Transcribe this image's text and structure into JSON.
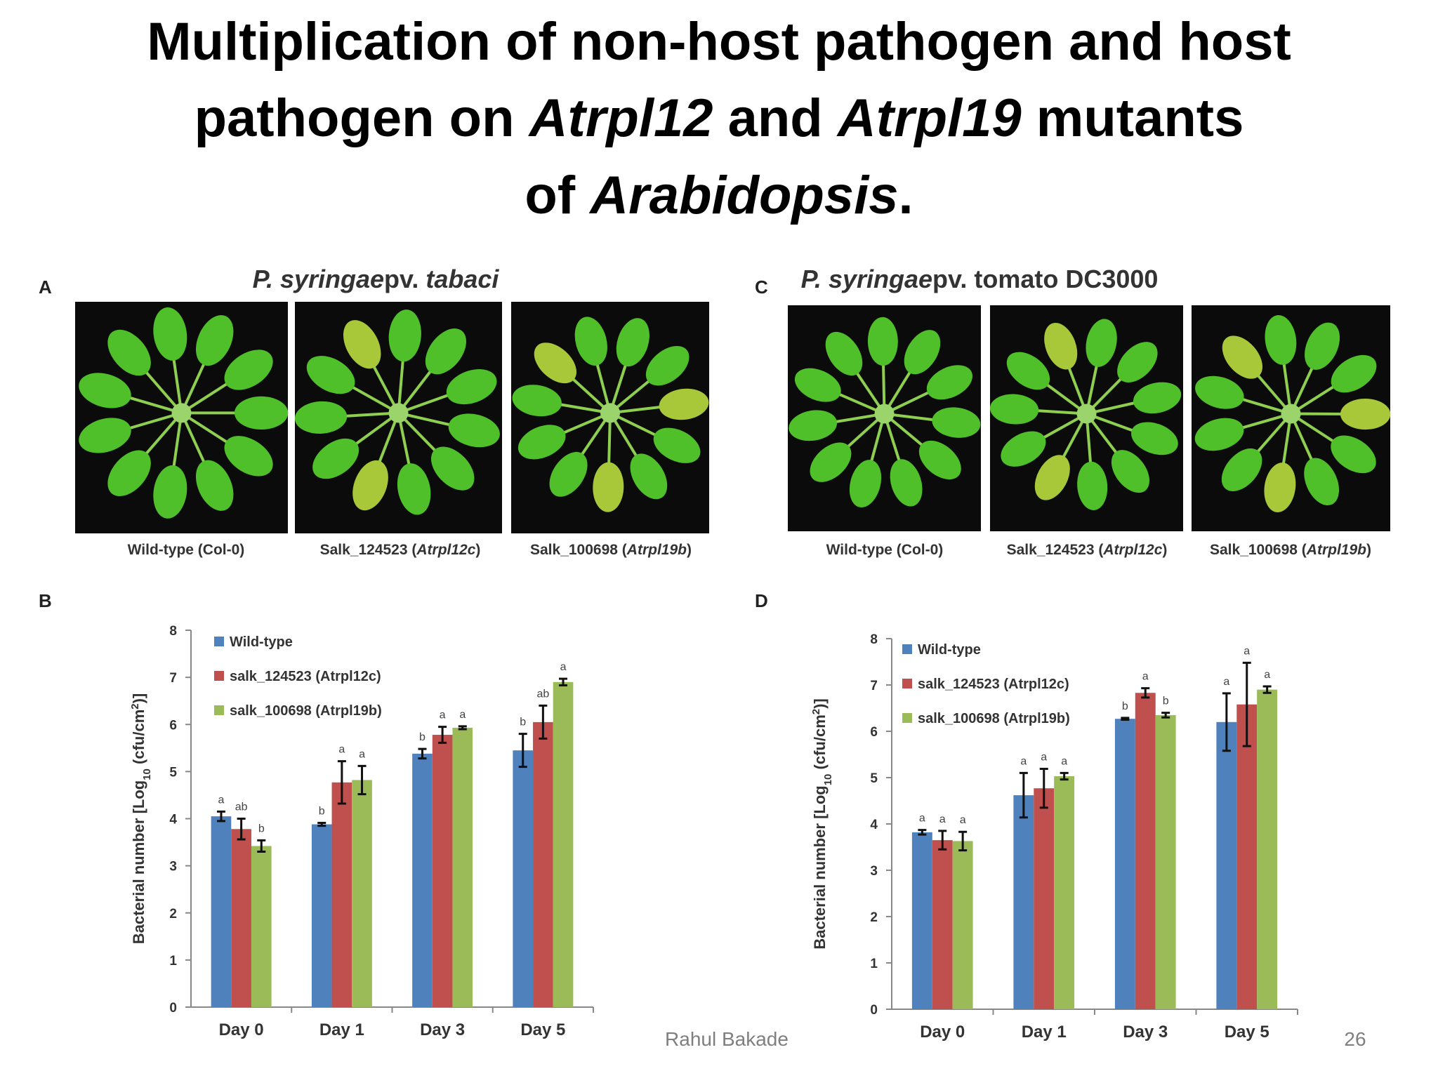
{
  "slide": {
    "title": [
      [
        "Multiplication of non-host pathogen and host"
      ],
      [
        "pathogen on ",
        {
          "text": "Atrpl12",
          "italic": true
        },
        " and ",
        {
          "text": "Atrpl19",
          "italic": true
        },
        " mutants"
      ],
      [
        "of ",
        {
          "text": "Arabidopsis",
          "italic": true
        },
        "."
      ]
    ],
    "footer": {
      "author": "Rahul Bakade",
      "page": "26"
    }
  },
  "panels": [
    {
      "letter": "A",
      "heading": [
        {
          "text": "P. syringae",
          "italic": true
        },
        "pv. ",
        {
          "text": "tabaci",
          "italic": true
        }
      ],
      "captions": [
        [
          "Wild-type (Col-0)"
        ],
        [
          "Salk_124523 (",
          {
            "text": "Atrpl12c",
            "italic": true
          },
          ")"
        ],
        [
          "Salk_100698 (",
          {
            "text": "Atrpl19b",
            "italic": true
          },
          ")"
        ]
      ]
    },
    {
      "letter": "C",
      "heading": [
        {
          "text": "P. syringae",
          "italic": true
        },
        "pv. tomato DC3000"
      ],
      "captions": [
        [
          "Wild-type (Col-0)"
        ],
        [
          "Salk_124523 (",
          {
            "text": "Atrpl12c",
            "italic": true
          },
          ")"
        ],
        [
          "Salk_100698 (",
          {
            "text": "Atrpl19b",
            "italic": true
          },
          ")"
        ]
      ]
    }
  ],
  "chart_data": [
    {
      "type": "bar",
      "panel": "B",
      "y_label": [
        "Bacterial number [Log",
        {
          "text": "10",
          "sub": true
        },
        " (cfu/cm",
        {
          "text": "2",
          "sup": true
        },
        ")]"
      ],
      "categories": [
        "Day 0",
        "Day 1",
        "Day 3",
        "Day 5"
      ],
      "ylim": [
        0,
        8
      ],
      "yticks": [
        0,
        1,
        2,
        3,
        4,
        5,
        6,
        7,
        8
      ],
      "series": [
        {
          "name": "Wild-type",
          "color": "#4f81bd",
          "values": [
            4.05,
            3.88,
            5.38,
            5.45
          ],
          "errors": [
            0.1,
            0.03,
            0.1,
            0.35
          ],
          "significance": [
            "a",
            "b",
            "b",
            "b"
          ]
        },
        {
          "name": "salk_124523 (Atrpl12c)",
          "color": "#c0504d",
          "values": [
            3.78,
            4.77,
            5.78,
            6.05
          ],
          "errors": [
            0.22,
            0.45,
            0.17,
            0.35
          ],
          "significance": [
            "ab",
            "a",
            "a",
            "ab"
          ]
        },
        {
          "name": "salk_100698 (Atrpl19b)",
          "color": "#9bbb59",
          "values": [
            3.42,
            4.82,
            5.93,
            6.9
          ],
          "errors": [
            0.12,
            0.3,
            0.03,
            0.07
          ],
          "significance": [
            "b",
            "a",
            "a",
            "a"
          ]
        }
      ]
    },
    {
      "type": "bar",
      "panel": "D",
      "y_label": [
        "Bacterial number [Log",
        {
          "text": "10",
          "sub": true
        },
        " (cfu/cm",
        {
          "text": "2",
          "sup": true
        },
        ")]"
      ],
      "categories": [
        "Day 0",
        "Day 1",
        "Day 3",
        "Day 5"
      ],
      "ylim": [
        0,
        8
      ],
      "yticks": [
        0,
        1,
        2,
        3,
        4,
        5,
        6,
        7,
        8
      ],
      "series": [
        {
          "name": "Wild-type",
          "color": "#4f81bd",
          "values": [
            3.82,
            4.62,
            6.27,
            6.2
          ],
          "errors": [
            0.05,
            0.48,
            0.02,
            0.62
          ],
          "significance": [
            "a",
            "a",
            "b",
            "a"
          ]
        },
        {
          "name": "salk_124523 (Atrpl12c)",
          "color": "#c0504d",
          "values": [
            3.65,
            4.77,
            6.83,
            6.58
          ],
          "errors": [
            0.2,
            0.42,
            0.1,
            0.9
          ],
          "significance": [
            "a",
            "a",
            "a",
            "a"
          ]
        },
        {
          "name": "salk_100698 (Atrpl19b)",
          "color": "#9bbb59",
          "values": [
            3.63,
            5.03,
            6.35,
            6.9
          ],
          "errors": [
            0.2,
            0.07,
            0.05,
            0.07
          ],
          "significance": [
            "a",
            "a",
            "b",
            "a"
          ]
        }
      ]
    }
  ]
}
